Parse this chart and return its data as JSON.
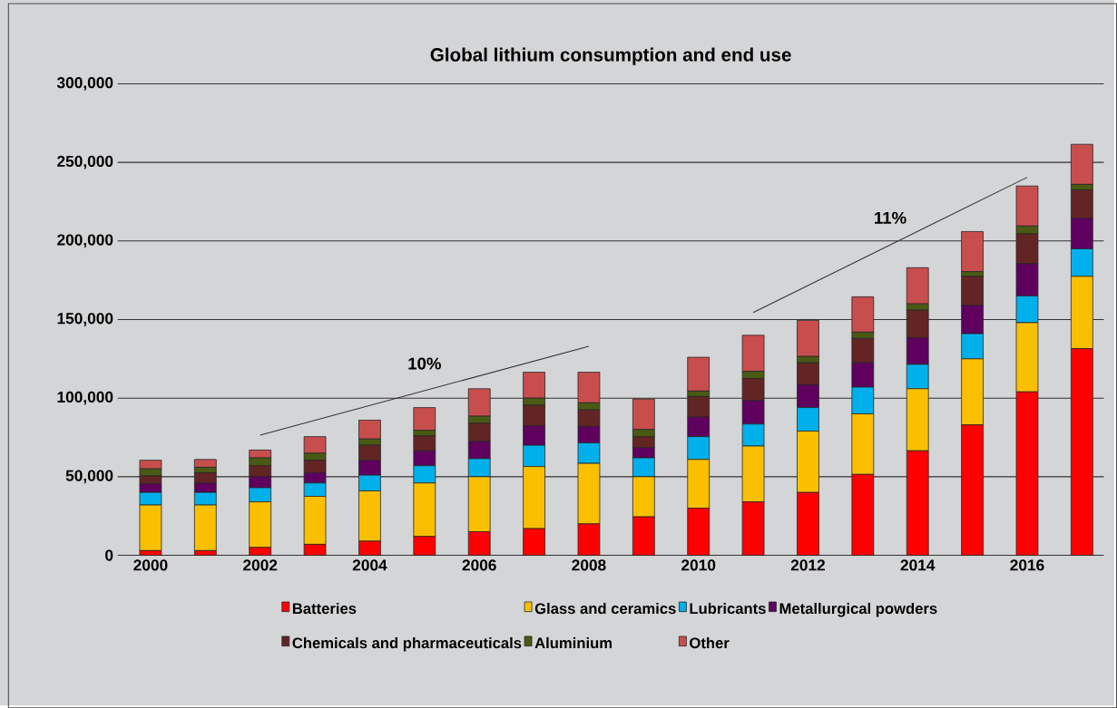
{
  "chart_data": {
    "type": "bar",
    "stacked": true,
    "title": "Global lithium consumption and end use",
    "categories": [
      "2000",
      null,
      "2002",
      null,
      "2004",
      null,
      "2006",
      null,
      "2008",
      null,
      "2010",
      null,
      "2012",
      null,
      "2014",
      null,
      "2016",
      null
    ],
    "series": [
      {
        "name": "Batteries",
        "color": "#ff0000",
        "values": [
          3000,
          3000,
          5000,
          7000,
          9000,
          12000,
          15000,
          17000,
          20000,
          24500,
          30000,
          34000,
          40000,
          51500,
          66500,
          83000,
          104000,
          131500
        ]
      },
      {
        "name": "Glass and ceramics",
        "color": "#fac000",
        "values": [
          29000,
          29000,
          29000,
          30500,
          32000,
          34000,
          35000,
          39500,
          38500,
          25500,
          31000,
          35500,
          39000,
          38500,
          39500,
          42000,
          44000,
          46000
        ]
      },
      {
        "name": "Lubricants",
        "color": "#00b0eb",
        "values": [
          8000,
          8000,
          9000,
          8500,
          10000,
          11000,
          11500,
          13500,
          13000,
          12000,
          14500,
          14000,
          15000,
          17000,
          15500,
          16000,
          17000,
          17500
        ]
      },
      {
        "name": "Metallurgical powders",
        "color": "#5f005f",
        "values": [
          5500,
          6000,
          7000,
          6500,
          9500,
          9500,
          11000,
          12500,
          10500,
          6500,
          12500,
          15000,
          14500,
          15500,
          17000,
          18000,
          20500,
          19500
        ]
      },
      {
        "name": "Chemicals and pharmaceuticals",
        "color": "#632523",
        "values": [
          5000,
          6500,
          7000,
          8000,
          9500,
          9500,
          11500,
          13000,
          10500,
          7000,
          13000,
          14000,
          14000,
          15500,
          17500,
          18500,
          19000,
          18000
        ]
      },
      {
        "name": "Aluminium",
        "color": "#4a5a14",
        "values": [
          4500,
          3500,
          5000,
          4500,
          4000,
          3500,
          4500,
          4500,
          4500,
          4500,
          3500,
          4500,
          4000,
          4000,
          4000,
          3000,
          5000,
          3500
        ]
      },
      {
        "name": "Other",
        "color": "#c84e4e",
        "values": [
          5500,
          5000,
          5000,
          10500,
          12000,
          14500,
          17500,
          16500,
          19500,
          19500,
          21500,
          23000,
          23000,
          22500,
          23000,
          25500,
          25500,
          25500
        ]
      },
      {
        "type": "line",
        "color": "#333333",
        "values": [
          null,
          null,
          76500,
          null,
          null,
          null,
          null,
          null,
          133000,
          null,
          null,
          null,
          null,
          null,
          null,
          null,
          null,
          null
        ]
      },
      {
        "type": "line",
        "color": "#333333",
        "values": [
          null,
          null,
          null,
          null,
          null,
          null,
          null,
          null,
          null,
          null,
          null,
          154500,
          null,
          null,
          null,
          null,
          240500,
          null
        ]
      }
    ],
    "annotations": [
      "10%",
      "11%"
    ],
    "ylim": [
      0,
      300000
    ],
    "yticks": [
      0,
      {
        "value": 50000,
        "label": "50,000"
      },
      {
        "value": 100000,
        "label": "100,000"
      },
      {
        "value": 150000,
        "label": "150,000"
      },
      {
        "value": 200000,
        "label": "200,000"
      },
      {
        "value": 250000,
        "label": "250,000"
      },
      {
        "value": 300000,
        "label": "300,000"
      }
    ],
    "grid": "y",
    "legend": "bottom"
  }
}
